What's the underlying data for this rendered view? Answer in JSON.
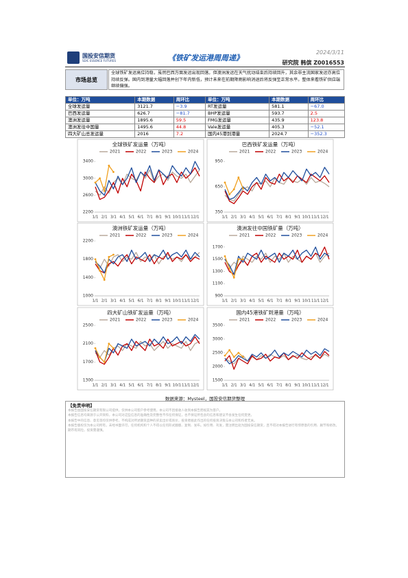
{
  "header": {
    "logo_cn": "国投安信期货",
    "logo_en": "SDIC ESSENCE FUTURES",
    "title": "《铁矿发运港周周递》",
    "date": "2024/3/11",
    "author": "研究院  韩傧  Z0016553"
  },
  "overview": {
    "label": "市场总览",
    "text": "全球铁矿发运高位持稳，虽然巴西方面发运出现回落，但澳洲发运在天气扰动结束后持续回升，其余非主流国家发运亦高位持续反弹。国内到港量大幅回落并创下年内新低，预计未来在前期降雨影响消退后将反弹至正常水平。整体来看铁矿供应端继续偏强。"
  },
  "table": {
    "header": [
      "单位：万吨",
      "本期数据",
      "周环比",
      "单位：万吨",
      "本期数据",
      "周环比"
    ],
    "rows": [
      [
        "全球发运量",
        "3121.7",
        "−3.9",
        "RT发运量",
        "581.1",
        "−67.0"
      ],
      [
        "巴西发运量",
        "626.7",
        "−81.7",
        "BHP发运量",
        "593.7",
        "2.5"
      ],
      [
        "澳洲发运量",
        "1895.6",
        "59.5",
        "FMG发运量",
        "435.9",
        "123.8"
      ],
      [
        "澳洲发往中国量",
        "1495.6",
        "44.8",
        "Vale发运量",
        "405.3",
        "−52.1"
      ],
      [
        "四大矿山总发运量",
        "2016",
        "7.2",
        "国内45港到港量",
        "2024.7",
        "−352.3"
      ]
    ]
  },
  "chart_data": [
    {
      "type": "line",
      "title": "全球铁矿发运量（万吨）",
      "categories": [
        "1/1",
        null,
        "2/1",
        null,
        "3/1",
        null,
        "4/1",
        null,
        "5/1",
        null,
        "6/1",
        null,
        "7/1",
        null,
        "8/1",
        null,
        "9/1",
        null,
        "10/1",
        null,
        "11/1",
        null,
        "12/1",
        null
      ],
      "ylim": [
        2200,
        3500
      ],
      "yticks": [
        2200,
        2600,
        3000,
        3400
      ],
      "series": [
        {
          "name": "2021",
          "color": "#b9a99b",
          "values": [
            2700,
            2600,
            2800,
            2650,
            2900,
            3000,
            2850,
            3100,
            3000,
            2950,
            3150,
            3000,
            3200,
            2900,
            3050,
            3100,
            2950,
            3150,
            3050,
            3000,
            3100,
            2900,
            3050,
            3200
          ]
        },
        {
          "name": "2022",
          "color": "#c00000",
          "values": [
            2800,
            2500,
            2550,
            2700,
            2900,
            2650,
            3000,
            2800,
            3100,
            2950,
            2700,
            3150,
            3000,
            2900,
            3200,
            2850,
            3050,
            3100,
            2900,
            3150,
            3000,
            3100,
            3250,
            3050
          ]
        },
        {
          "name": "2023",
          "color": "#1f4e9c",
          "values": [
            2900,
            2700,
            2600,
            2950,
            2750,
            3050,
            2850,
            3000,
            3250,
            2900,
            3150,
            3050,
            3300,
            2950,
            3200,
            3100,
            3000,
            3300,
            3150,
            3050,
            3250,
            3100,
            3400,
            3200
          ]
        },
        {
          "name": "2024",
          "color": "#f0a020",
          "values": [
            2900,
            3000,
            2700,
            3300,
            3150,
            null,
            null,
            null,
            null,
            null,
            null,
            null,
            null,
            null,
            null,
            null,
            null,
            null,
            null,
            null,
            null,
            null,
            null,
            null
          ]
        }
      ]
    },
    {
      "type": "line",
      "title": "巴西铁矿发运量（万吨）",
      "categories": [
        "1/1",
        null,
        "2/1",
        null,
        "3/1",
        null,
        "4/1",
        null,
        "5/1",
        null,
        "6/1",
        null,
        "7/1",
        null,
        "8/1",
        null,
        "9/1",
        null,
        "10/1",
        null,
        "11/1",
        null,
        "12/1",
        null
      ],
      "ylim": [
        350,
        1000
      ],
      "yticks": [
        350,
        650,
        950
      ],
      "series": [
        {
          "name": "2021",
          "color": "#b9a99b",
          "values": [
            550,
            500,
            480,
            560,
            620,
            650,
            600,
            700,
            680,
            720,
            650,
            750,
            700,
            680,
            760,
            720,
            700,
            740,
            680,
            760,
            700,
            720,
            690,
            650
          ]
        },
        {
          "name": "2022",
          "color": "#c00000",
          "values": [
            600,
            480,
            450,
            520,
            600,
            560,
            650,
            700,
            620,
            760,
            700,
            680,
            800,
            720,
            760,
            700,
            780,
            740,
            700,
            800,
            760,
            720,
            780,
            700
          ]
        },
        {
          "name": "2023",
          "color": "#1f4e9c",
          "values": [
            620,
            500,
            520,
            580,
            650,
            600,
            700,
            760,
            680,
            800,
            720,
            760,
            700,
            820,
            760,
            840,
            780,
            720,
            860,
            780,
            820,
            760,
            880,
            800
          ]
        },
        {
          "name": "2024",
          "color": "#f0a020",
          "values": [
            700,
            560,
            620,
            760,
            630,
            null,
            null,
            null,
            null,
            null,
            null,
            null,
            null,
            null,
            null,
            null,
            null,
            null,
            null,
            null,
            null,
            null,
            null,
            null
          ]
        }
      ]
    },
    {
      "type": "line",
      "title": "澳洲铁矿发运量（万吨）",
      "categories": [
        "1/1",
        null,
        "2/1",
        null,
        "3/1",
        null,
        "4/1",
        null,
        "5/1",
        null,
        "6/1",
        null,
        "7/1",
        null,
        "8/1",
        null,
        "9/1",
        null,
        "10/1",
        null,
        "11/1",
        null,
        "12/1",
        null
      ],
      "ylim": [
        1000,
        2200
      ],
      "yticks": [
        1000,
        1400,
        1800,
        2200
      ],
      "series": [
        {
          "name": "2021",
          "color": "#b9a99b",
          "values": [
            1750,
            1600,
            1800,
            1650,
            1850,
            1900,
            1750,
            1850,
            1800,
            1950,
            1750,
            1850,
            1800,
            1900,
            1700,
            1850,
            1900,
            1800,
            1850,
            1750,
            1900,
            1800,
            1850,
            1950
          ]
        },
        {
          "name": "2022",
          "color": "#c00000",
          "values": [
            1700,
            1550,
            1500,
            1700,
            1750,
            1650,
            1800,
            1900,
            1700,
            1850,
            1800,
            1750,
            1900,
            1700,
            1850,
            1800,
            1950,
            1750,
            1850,
            1800,
            1900,
            1750,
            1850,
            1800
          ]
        },
        {
          "name": "2023",
          "color": "#1f4e9c",
          "values": [
            1750,
            1650,
            1500,
            1800,
            1700,
            1850,
            1900,
            1750,
            2000,
            1800,
            1850,
            1950,
            1750,
            1900,
            1850,
            2000,
            1800,
            1900,
            1950,
            1850,
            2000,
            1800,
            1950,
            1850
          ]
        },
        {
          "name": "2024",
          "color": "#f0a020",
          "values": [
            1800,
            1550,
            1350,
            1850,
            1900,
            null,
            null,
            null,
            null,
            null,
            null,
            null,
            null,
            null,
            null,
            null,
            null,
            null,
            null,
            null,
            null,
            null,
            null,
            null
          ]
        }
      ]
    },
    {
      "type": "line",
      "title": "澳洲发往中国铁矿量（万吨）",
      "categories": [
        "1/1",
        null,
        "2/1",
        null,
        "3/1",
        null,
        "4/1",
        null,
        "5/1",
        null,
        "6/1",
        null,
        "7/1",
        null,
        "8/1",
        null,
        "9/1",
        null,
        "10/1",
        null,
        "11/1",
        null,
        "12/1",
        null
      ],
      "ylim": [
        900,
        1800
      ],
      "yticks": [
        900,
        1100,
        1300,
        1500,
        1700
      ],
      "series": [
        {
          "name": "2021",
          "color": "#b9a99b",
          "values": [
            1500,
            1350,
            1450,
            1400,
            1550,
            1500,
            1450,
            1550,
            1500,
            1600,
            1450,
            1550,
            1500,
            1600,
            1450,
            1550,
            1500,
            1450,
            1550,
            1500,
            1600,
            1450,
            1550,
            1600
          ]
        },
        {
          "name": "2022",
          "color": "#c00000",
          "values": [
            1450,
            1300,
            1250,
            1400,
            1500,
            1400,
            1550,
            1600,
            1450,
            1550,
            1500,
            1450,
            1600,
            1500,
            1550,
            1500,
            1650,
            1450,
            1550,
            1500,
            1600,
            1550,
            1700,
            1500
          ]
        },
        {
          "name": "2023",
          "color": "#1f4e9c",
          "values": [
            1500,
            1400,
            1250,
            1550,
            1450,
            1600,
            1550,
            1500,
            1650,
            1500,
            1550,
            1600,
            1450,
            1600,
            1550,
            1650,
            1500,
            1600,
            1650,
            1550,
            1700,
            1500,
            1600,
            1550
          ]
        },
        {
          "name": "2024",
          "color": "#f0a020",
          "values": [
            1550,
            1350,
            1200,
            1500,
            1500,
            null,
            null,
            null,
            null,
            null,
            null,
            null,
            null,
            null,
            null,
            null,
            null,
            null,
            null,
            null,
            null,
            null,
            null,
            null
          ]
        }
      ]
    },
    {
      "type": "line",
      "title": "四大矿山铁矿发运量（万吨）",
      "categories": [
        "1/1",
        null,
        "2/1",
        null,
        "3/1",
        null,
        "4/1",
        null,
        "5/1",
        null,
        "6/1",
        null,
        "7/1",
        null,
        "8/1",
        null,
        "9/1",
        null,
        "10/1",
        null,
        "11/1",
        null,
        "12/1",
        null
      ],
      "ylim": [
        1300,
        2500
      ],
      "yticks": [
        1300,
        1700,
        2100,
        2500
      ],
      "series": [
        {
          "name": "2021",
          "color": "#b9a99b",
          "values": [
            1900,
            1800,
            1950,
            1850,
            2000,
            2050,
            1950,
            2100,
            2050,
            2000,
            2150,
            2050,
            2100,
            1950,
            2050,
            2150,
            2000,
            2100,
            2050,
            2000,
            2150,
            1950,
            2100,
            2150
          ]
        },
        {
          "name": "2022",
          "color": "#c00000",
          "values": [
            1950,
            1700,
            1650,
            1800,
            2000,
            1850,
            2050,
            2100,
            1950,
            2150,
            2050,
            1950,
            2200,
            2050,
            2100,
            2000,
            2200,
            2050,
            2100,
            2150,
            2050,
            2100,
            2250,
            2100
          ]
        },
        {
          "name": "2023",
          "color": "#1f4e9c",
          "values": [
            1950,
            1800,
            1700,
            2000,
            1900,
            2100,
            2050,
            2000,
            2200,
            2050,
            2100,
            2150,
            2050,
            2200,
            2100,
            2250,
            2100,
            2150,
            2250,
            2100,
            2250,
            2150,
            2300,
            2200
          ]
        },
        {
          "name": "2024",
          "color": "#f0a020",
          "values": [
            2000,
            1800,
            1700,
            2100,
            2000,
            null,
            null,
            null,
            null,
            null,
            null,
            null,
            null,
            null,
            null,
            null,
            null,
            null,
            null,
            null,
            null,
            null,
            null,
            null
          ]
        }
      ]
    },
    {
      "type": "line",
      "title": "国内45港铁矿到港量（万吨）",
      "categories": [
        "1/1",
        null,
        "2/1",
        null,
        "3/1",
        null,
        "4/1",
        null,
        "5/1",
        null,
        "6/1",
        null,
        "7/1",
        null,
        "8/1",
        null,
        "9/1",
        null,
        "10/1",
        null,
        "11/1",
        null,
        "12/1",
        null
      ],
      "ylim": [
        1500,
        3500
      ],
      "yticks": [
        1500,
        2000,
        2500,
        3000,
        3500
      ],
      "series": [
        {
          "name": "2021",
          "color": "#b9a99b",
          "values": [
            2300,
            2200,
            2100,
            2300,
            2400,
            2200,
            2350,
            2250,
            2400,
            2300,
            2450,
            2350,
            2300,
            2400,
            2250,
            2350,
            2400,
            2300,
            2250,
            2350,
            2400,
            2300,
            2450,
            2350
          ]
        },
        {
          "name": "2022",
          "color": "#c00000",
          "values": [
            2200,
            2400,
            1900,
            2300,
            2200,
            2100,
            2400,
            2250,
            2300,
            2450,
            2200,
            2350,
            2300,
            2500,
            2250,
            2400,
            2300,
            2500,
            2350,
            2250,
            2450,
            2300,
            2550,
            2400
          ]
        },
        {
          "name": "2023",
          "color": "#1f4e9c",
          "values": [
            2300,
            2100,
            2200,
            2400,
            2300,
            2200,
            2450,
            2350,
            2500,
            2300,
            2400,
            2600,
            2350,
            2500,
            2400,
            2550,
            2450,
            2350,
            2600,
            2450,
            2550,
            2400,
            2650,
            2550
          ]
        },
        {
          "name": "2024",
          "color": "#f0a020",
          "values": [
            2400,
            2600,
            2350,
            2500,
            2350,
            null,
            null,
            null,
            null,
            null,
            null,
            null,
            null,
            null,
            null,
            null,
            null,
            null,
            null,
            null,
            null,
            null,
            null,
            null
          ]
        }
      ]
    }
  ],
  "source": "数据来源：Mysteel，国投安信期货整理",
  "disclaimer": {
    "title": "【免责申明】",
    "paragraphs": [
      "本报告由国投安信期货有限公司提供，仅供本公司客户参考使用，本公司不因接收人收到本报告而视其为客户。",
      "本报告信息均来源于公开资料，本公司对这些信息的准确性及完整性不作任何保证，也不保证所包含的信息和建议不会发生任何变更。",
      "本报告中的信息、意见等均仅供参考，不构成对所述期货品种的买卖出价或询价，投资者据此作出的任何投资决策与本公司和作者无关。",
      "本报告版权仅为本公司所有，未经书面许可，任何机构和个人不得以任何形式翻版、复制、发布。如引用、刊发，需注明出处为国投安信期货，且不得对本报告进行有悖原意的引用、删节和修改。",
      "期市有风险，投资需谨慎。"
    ]
  }
}
